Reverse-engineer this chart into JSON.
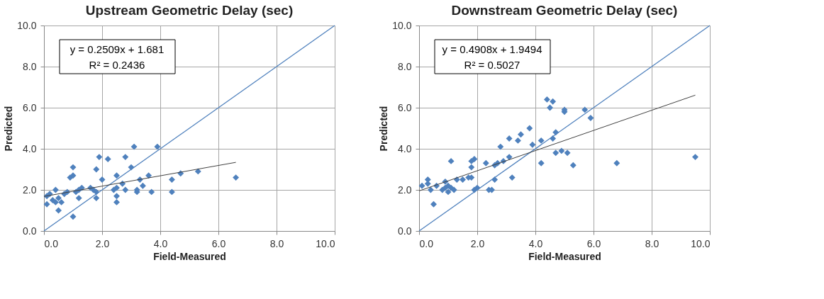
{
  "chart_data": [
    {
      "type": "scatter",
      "title": "Upstream Geometric Delay (sec)",
      "xlabel": "Field-Measured",
      "ylabel": "Predicted",
      "xlim": [
        0,
        10
      ],
      "ylim": [
        0,
        10
      ],
      "xticks": [
        {
          "value": 0,
          "label": "0.0"
        },
        {
          "value": 2,
          "label": "2.0"
        },
        {
          "value": 4,
          "label": "4.0"
        },
        {
          "value": 6,
          "label": "6.0"
        },
        {
          "value": 8,
          "label": "8.0"
        },
        {
          "value": 10,
          "label": "10.0"
        }
      ],
      "yticks": [
        {
          "value": 0,
          "label": "0.0"
        },
        {
          "value": 2,
          "label": "2.0"
        },
        {
          "value": 4,
          "label": "4.0"
        },
        {
          "value": 6,
          "label": "6.0"
        },
        {
          "value": 8,
          "label": "8.0"
        },
        {
          "value": 10,
          "label": "10.0"
        }
      ],
      "grid": true,
      "annotations": [
        "y = 0.2509x + 1.681",
        "R² = 0.2436"
      ],
      "series": [
        {
          "marker": "diamond",
          "color": "#4f81bd",
          "x": [
            0.1,
            0.1,
            0.2,
            0.3,
            0.4,
            0.4,
            0.5,
            0.5,
            0.6,
            0.7,
            0.8,
            0.9,
            1.0,
            1.0,
            1.0,
            1.1,
            1.2,
            1.2,
            1.3,
            1.6,
            1.7,
            1.8,
            1.8,
            1.8,
            1.9,
            2.0,
            2.2,
            2.4,
            2.5,
            2.5,
            2.5,
            2.5,
            2.7,
            2.8,
            2.8,
            3.0,
            3.1,
            3.2,
            3.2,
            3.3,
            3.4,
            3.6,
            3.7,
            3.9,
            4.4,
            4.4,
            4.7,
            5.3,
            6.6
          ],
          "values": [
            1.3,
            1.7,
            1.8,
            1.5,
            1.4,
            2.0,
            1.6,
            1.0,
            1.4,
            1.8,
            1.9,
            2.6,
            2.7,
            3.1,
            0.7,
            1.9,
            1.6,
            2.0,
            2.1,
            2.1,
            2.0,
            1.9,
            1.6,
            3.0,
            3.6,
            2.5,
            3.5,
            2.0,
            2.1,
            2.7,
            1.7,
            1.4,
            2.3,
            3.6,
            2.0,
            3.1,
            4.1,
            2.0,
            1.9,
            2.5,
            2.2,
            2.7,
            1.9,
            4.1,
            2.5,
            1.9,
            2.8,
            2.9,
            2.6
          ]
        },
        {
          "type": "line",
          "color": "#4f81bd",
          "x": [
            0,
            10
          ],
          "values": [
            0,
            10
          ]
        },
        {
          "type": "line",
          "color": "#404040",
          "x": [
            0,
            6.6
          ],
          "values": [
            1.68,
            3.34
          ]
        }
      ]
    },
    {
      "type": "scatter",
      "title": "Downstream Geometric Delay (sec)",
      "xlabel": "Field-Measured",
      "ylabel": "Predicted",
      "xlim": [
        0,
        10
      ],
      "ylim": [
        0,
        10
      ],
      "xticks": [
        {
          "value": 0,
          "label": "0.0"
        },
        {
          "value": 2,
          "label": "2.0"
        },
        {
          "value": 4,
          "label": "4.0"
        },
        {
          "value": 6,
          "label": "6.0"
        },
        {
          "value": 8,
          "label": "8.0"
        },
        {
          "value": 10,
          "label": "10.0"
        }
      ],
      "yticks": [
        {
          "value": 0,
          "label": "0.0"
        },
        {
          "value": 2,
          "label": "2.0"
        },
        {
          "value": 4,
          "label": "4.0"
        },
        {
          "value": 6,
          "label": "6.0"
        },
        {
          "value": 8,
          "label": "8.0"
        },
        {
          "value": 10,
          "label": "10.0"
        }
      ],
      "grid": true,
      "annotations": [
        "y = 0.4908x + 1.9494",
        "R² = 0.5027"
      ],
      "series": [
        {
          "marker": "diamond",
          "color": "#4f81bd",
          "x": [
            0.1,
            0.3,
            0.3,
            0.4,
            0.5,
            0.6,
            0.8,
            0.9,
            0.9,
            1.0,
            1.0,
            1.1,
            1.1,
            1.2,
            1.3,
            1.5,
            1.7,
            1.8,
            1.8,
            1.8,
            1.9,
            1.9,
            2.0,
            2.3,
            2.4,
            2.5,
            2.6,
            2.6,
            2.7,
            2.8,
            2.9,
            3.1,
            3.1,
            3.2,
            3.4,
            3.5,
            3.8,
            3.9,
            4.2,
            4.2,
            4.4,
            4.5,
            4.6,
            4.6,
            4.7,
            4.7,
            4.9,
            5.0,
            5.0,
            5.1,
            5.3,
            5.7,
            5.9,
            6.8,
            9.5
          ],
          "values": [
            2.2,
            2.3,
            2.5,
            2.0,
            1.3,
            2.2,
            2.0,
            2.1,
            2.4,
            1.9,
            2.2,
            2.1,
            3.4,
            2.0,
            2.5,
            2.5,
            2.6,
            3.4,
            3.1,
            2.6,
            3.5,
            2.0,
            2.1,
            3.3,
            2.0,
            2.0,
            3.2,
            2.5,
            3.3,
            4.1,
            3.4,
            4.5,
            3.6,
            2.6,
            4.4,
            4.7,
            5.0,
            4.2,
            4.4,
            3.3,
            6.4,
            6.0,
            6.3,
            4.5,
            3.8,
            4.8,
            3.9,
            5.8,
            5.9,
            3.8,
            3.2,
            5.9,
            5.5,
            3.3,
            3.6
          ]
        },
        {
          "type": "line",
          "color": "#4f81bd",
          "x": [
            0,
            10
          ],
          "values": [
            0,
            10
          ]
        },
        {
          "type": "line",
          "color": "#404040",
          "x": [
            0,
            9.5
          ],
          "values": [
            1.95,
            6.61
          ]
        }
      ]
    }
  ]
}
